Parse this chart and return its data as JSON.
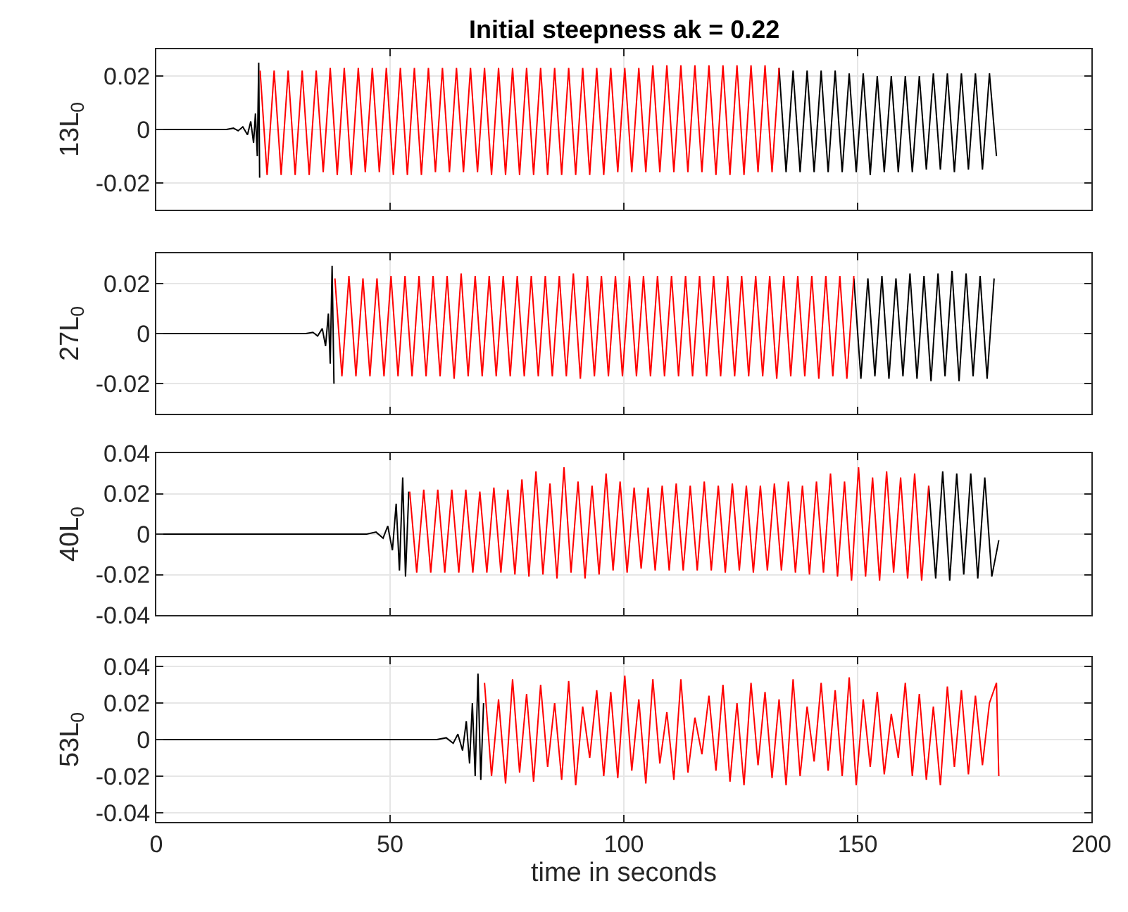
{
  "chart_data": [
    {
      "type": "line",
      "title": "Initial steepness ak = 0.22",
      "ylabel": "13L$_{0}$",
      "xlim": [
        0,
        200
      ],
      "xticks": [
        0,
        50,
        100,
        150,
        200
      ],
      "ylim": [
        -0.03,
        0.03
      ],
      "yticks": [
        -0.02,
        0,
        0.02
      ],
      "grid": true,
      "tick_labels": "y",
      "marker": "none",
      "line_style": "solid",
      "series": [
        {
          "color": "#000000",
          "x": [
            0,
            15,
            16.5,
            17.5,
            18.5,
            19.5,
            20.2,
            20.8,
            21.2,
            21.6,
            21.9,
            22.1,
            77,
            133.2,
            134.7,
            136.2,
            137.7,
            139.2,
            140.7,
            142.2,
            143.7,
            145.2,
            146.7,
            148.2,
            149.7,
            151.2,
            152.7,
            154.2,
            155.7,
            157.2,
            158.7,
            160.2,
            161.7,
            163.2,
            164.7,
            166.2,
            167.7,
            169.2,
            170.7,
            172.2,
            173.7,
            175.2,
            176.7,
            178.2,
            179.7
          ],
          "values": [
            0,
            0,
            0.0005,
            -0.0005,
            0.001,
            -0.002,
            0.003,
            -0.005,
            0.006,
            -0.01,
            0.025,
            -0.018,
            null,
            0.023,
            -0.016,
            0.022,
            -0.016,
            0.022,
            -0.016,
            0.022,
            -0.016,
            0.022,
            -0.016,
            0.021,
            -0.016,
            0.021,
            -0.017,
            0.02,
            -0.016,
            0.02,
            -0.016,
            0.02,
            -0.016,
            0.02,
            -0.015,
            0.021,
            -0.015,
            0.021,
            -0.016,
            0.021,
            -0.015,
            0.021,
            -0.015,
            0.021,
            -0.01
          ]
        },
        {
          "color": "#ff0000",
          "x": [
            22.2,
            23.7,
            25.2,
            26.7,
            28.2,
            29.7,
            31.2,
            32.7,
            34.2,
            35.7,
            37.2,
            38.7,
            40.2,
            41.7,
            43.2,
            44.7,
            46.2,
            47.7,
            49.2,
            50.7,
            52.2,
            53.7,
            55.2,
            56.7,
            58.2,
            59.7,
            61.2,
            62.7,
            64.2,
            65.7,
            67.2,
            68.7,
            70.2,
            71.7,
            73.2,
            74.7,
            76.2,
            77.7,
            79.2,
            80.7,
            82.2,
            83.7,
            85.2,
            86.7,
            88.2,
            89.7,
            91.2,
            92.7,
            94.2,
            95.7,
            97.2,
            98.7,
            100.2,
            101.7,
            103.2,
            104.7,
            106.2,
            107.7,
            109.2,
            110.7,
            112.2,
            113.7,
            115.2,
            116.7,
            118.2,
            119.7,
            121.2,
            122.7,
            124.2,
            125.7,
            127.2,
            128.7,
            130.2,
            131.7,
            133.2
          ],
          "values": [
            0.022,
            -0.017,
            0.022,
            -0.017,
            0.022,
            -0.017,
            0.022,
            -0.017,
            0.022,
            -0.016,
            0.023,
            -0.017,
            0.023,
            -0.017,
            0.023,
            -0.016,
            0.023,
            -0.016,
            0.023,
            -0.017,
            0.023,
            -0.017,
            0.023,
            -0.017,
            0.023,
            -0.016,
            0.023,
            -0.016,
            0.023,
            -0.016,
            0.023,
            -0.016,
            0.023,
            -0.017,
            0.023,
            -0.017,
            0.023,
            -0.017,
            0.023,
            -0.017,
            0.023,
            -0.017,
            0.023,
            -0.017,
            0.023,
            -0.017,
            0.023,
            -0.017,
            0.023,
            -0.017,
            0.023,
            -0.016,
            0.023,
            -0.016,
            0.023,
            -0.016,
            0.024,
            -0.016,
            0.024,
            -0.016,
            0.024,
            -0.016,
            0.024,
            -0.016,
            0.024,
            -0.017,
            0.024,
            -0.017,
            0.024,
            -0.017,
            0.024,
            -0.016,
            0.024,
            -0.016,
            0.023
          ]
        }
      ]
    },
    {
      "type": "line",
      "ylabel": "27L$_{0}$",
      "xlim": [
        0,
        200
      ],
      "xticks": [
        0,
        50,
        100,
        150,
        200
      ],
      "ylim": [
        -0.032,
        0.032
      ],
      "yticks": [
        -0.02,
        0,
        0.02
      ],
      "grid": true,
      "tick_labels": "y",
      "marker": "none",
      "line_style": "solid",
      "series": [
        {
          "color": "#000000",
          "x": [
            0,
            32,
            33.5,
            34.5,
            35.5,
            36.2,
            36.8,
            37.2,
            37.6,
            38.0,
            90,
            149.2,
            150.7,
            152.2,
            153.7,
            155.2,
            156.7,
            158.2,
            159.7,
            161.2,
            162.7,
            164.2,
            165.7,
            167.2,
            168.7,
            170.2,
            171.7,
            173.2,
            174.7,
            176.2,
            177.7,
            179.2
          ],
          "values": [
            0,
            0,
            0.0005,
            -0.001,
            0.002,
            -0.005,
            0.008,
            -0.012,
            0.027,
            -0.02,
            null,
            0.022,
            -0.018,
            0.022,
            -0.017,
            0.023,
            -0.018,
            0.022,
            -0.017,
            0.024,
            -0.018,
            0.023,
            -0.019,
            0.024,
            -0.017,
            0.025,
            -0.019,
            0.024,
            -0.017,
            0.023,
            -0.018,
            0.022
          ]
        },
        {
          "color": "#ff0000",
          "x": [
            38.2,
            39.7,
            41.2,
            42.7,
            44.2,
            45.7,
            47.2,
            48.7,
            50.2,
            51.7,
            53.2,
            54.7,
            56.2,
            57.7,
            59.2,
            60.7,
            62.2,
            63.7,
            65.2,
            66.7,
            68.2,
            69.7,
            71.2,
            72.7,
            74.2,
            75.7,
            77.2,
            78.7,
            80.2,
            81.7,
            83.2,
            84.7,
            86.2,
            87.7,
            89.2,
            90.7,
            92.2,
            93.7,
            95.2,
            96.7,
            98.2,
            99.7,
            101.2,
            102.7,
            104.2,
            105.7,
            107.2,
            108.7,
            110.2,
            111.7,
            113.2,
            114.7,
            116.2,
            117.7,
            119.2,
            120.7,
            122.2,
            123.7,
            125.2,
            126.7,
            128.2,
            129.7,
            131.2,
            132.7,
            134.2,
            135.7,
            137.2,
            138.7,
            140.2,
            141.7,
            143.2,
            144.7,
            146.2,
            147.7,
            149.2
          ],
          "values": [
            0.022,
            -0.017,
            0.023,
            -0.017,
            0.022,
            -0.017,
            0.022,
            -0.017,
            0.023,
            -0.017,
            0.023,
            -0.017,
            0.023,
            -0.017,
            0.023,
            -0.017,
            0.023,
            -0.018,
            0.024,
            -0.017,
            0.023,
            -0.017,
            0.023,
            -0.017,
            0.023,
            -0.017,
            0.023,
            -0.017,
            0.023,
            -0.017,
            0.023,
            -0.017,
            0.023,
            -0.017,
            0.024,
            -0.018,
            0.023,
            -0.017,
            0.023,
            -0.017,
            0.023,
            -0.017,
            0.023,
            -0.017,
            0.023,
            -0.017,
            0.023,
            -0.017,
            0.023,
            -0.017,
            0.023,
            -0.017,
            0.023,
            -0.017,
            0.023,
            -0.017,
            0.023,
            -0.017,
            0.023,
            -0.017,
            0.023,
            -0.017,
            0.023,
            -0.018,
            0.023,
            -0.017,
            0.023,
            -0.017,
            0.023,
            -0.018,
            0.023,
            -0.017,
            0.023,
            -0.018,
            0.023
          ]
        }
      ]
    },
    {
      "type": "line",
      "ylabel": "40L$_{0}$",
      "xlim": [
        0,
        200
      ],
      "xticks": [
        0,
        50,
        100,
        150,
        200
      ],
      "ylim": [
        -0.04,
        0.04
      ],
      "yticks": [
        -0.04,
        -0.02,
        0,
        0.02,
        0.04
      ],
      "grid": true,
      "tick_labels": "y",
      "marker": "none",
      "line_style": "solid",
      "series": [
        {
          "color": "#000000",
          "x": [
            0,
            45,
            47,
            48.5,
            49.5,
            50.5,
            51.3,
            52,
            52.7,
            53.3,
            54,
            110,
            165.2,
            166.7,
            168.2,
            169.7,
            171.2,
            172.7,
            174.2,
            175.7,
            177.2,
            178.7,
            180.2
          ],
          "values": [
            0,
            0,
            0.001,
            -0.002,
            0.004,
            -0.008,
            0.015,
            -0.018,
            0.028,
            -0.021,
            0.021,
            null,
            0.024,
            -0.022,
            0.031,
            -0.023,
            0.03,
            -0.02,
            0.03,
            -0.022,
            0.028,
            -0.021,
            -0.003
          ]
        },
        {
          "color": "#ff0000",
          "x": [
            54.2,
            55.7,
            57.2,
            58.7,
            60.2,
            61.7,
            63.2,
            64.7,
            66.2,
            67.7,
            69.2,
            70.7,
            72.2,
            73.7,
            75.2,
            76.7,
            78.2,
            79.7,
            81.2,
            82.7,
            84.2,
            85.7,
            87.2,
            88.7,
            90.2,
            91.7,
            93.2,
            94.7,
            96.2,
            97.7,
            99.2,
            100.7,
            102.2,
            103.7,
            105.2,
            106.7,
            108.2,
            109.7,
            111.2,
            112.7,
            114.2,
            115.7,
            117.2,
            118.7,
            120.2,
            121.7,
            123.2,
            124.7,
            126.2,
            127.7,
            129.2,
            130.7,
            132.2,
            133.7,
            135.2,
            136.7,
            138.2,
            139.7,
            141.2,
            142.7,
            144.2,
            145.7,
            147.2,
            148.7,
            150.2,
            151.7,
            153.2,
            154.7,
            156.2,
            157.7,
            159.2,
            160.7,
            162.2,
            163.7,
            165.2
          ],
          "values": [
            0.021,
            -0.019,
            0.022,
            -0.019,
            0.022,
            -0.019,
            0.022,
            -0.019,
            0.022,
            -0.019,
            0.021,
            -0.019,
            0.023,
            -0.019,
            0.022,
            -0.02,
            0.027,
            -0.021,
            0.031,
            -0.02,
            0.025,
            -0.022,
            0.033,
            -0.019,
            0.026,
            -0.022,
            0.024,
            -0.02,
            0.03,
            -0.018,
            0.026,
            -0.019,
            0.023,
            -0.017,
            0.023,
            -0.018,
            0.024,
            -0.018,
            0.025,
            -0.018,
            0.024,
            -0.018,
            0.026,
            -0.018,
            0.024,
            -0.019,
            0.025,
            -0.018,
            0.024,
            -0.019,
            0.024,
            -0.018,
            0.025,
            -0.018,
            0.026,
            -0.019,
            0.024,
            -0.02,
            0.026,
            -0.019,
            0.03,
            -0.021,
            0.026,
            -0.023,
            0.033,
            -0.021,
            0.028,
            -0.023,
            0.031,
            -0.019,
            0.028,
            -0.022,
            0.03,
            -0.023,
            0.024
          ]
        }
      ]
    },
    {
      "type": "line",
      "ylabel": "53L$_{0}$",
      "xlabel": "time in seconds",
      "xlim": [
        0,
        200
      ],
      "xticks": [
        0,
        50,
        100,
        150,
        200
      ],
      "ylim": [
        -0.045,
        0.045
      ],
      "yticks": [
        -0.04,
        -0.02,
        0,
        0.02,
        0.04
      ],
      "grid": true,
      "marker": "none",
      "line_style": "solid",
      "series": [
        {
          "color": "#000000",
          "x": [
            0,
            60,
            62,
            63.5,
            64.5,
            65.5,
            66.3,
            67,
            67.6,
            68.2,
            68.8,
            69.4,
            70
          ],
          "values": [
            0,
            0,
            0.001,
            -0.002,
            0.003,
            -0.006,
            0.01,
            -0.013,
            0.02,
            -0.02,
            0.036,
            -0.022,
            0.02
          ]
        },
        {
          "color": "#ff0000",
          "x": [
            70.2,
            71.7,
            73.2,
            74.7,
            76.2,
            77.7,
            79.2,
            80.7,
            82.2,
            83.7,
            85.2,
            86.7,
            88.2,
            89.7,
            91.2,
            92.7,
            94.2,
            95.7,
            97.2,
            98.7,
            100.2,
            101.7,
            103.2,
            104.7,
            106.2,
            107.7,
            109.2,
            110.7,
            112.2,
            113.7,
            115.2,
            116.7,
            118.2,
            119.7,
            121.2,
            122.7,
            124.2,
            125.7,
            127.2,
            128.7,
            130.2,
            131.7,
            133.2,
            134.7,
            136.2,
            137.7,
            139.2,
            140.7,
            142.2,
            143.7,
            145.2,
            146.7,
            148.2,
            149.7,
            151.2,
            152.7,
            154.2,
            155.7,
            157.2,
            158.7,
            160.2,
            161.7,
            163.2,
            164.7,
            166.2,
            167.7,
            169.2,
            170.7,
            172.2,
            173.7,
            175.2,
            176.7,
            178.2,
            179.7,
            180.2
          ],
          "values": [
            0.031,
            -0.02,
            0.022,
            -0.024,
            0.033,
            -0.018,
            0.025,
            -0.023,
            0.03,
            -0.015,
            0.02,
            -0.022,
            0.032,
            -0.025,
            0.018,
            -0.01,
            0.027,
            -0.02,
            0.026,
            -0.021,
            0.035,
            -0.017,
            0.022,
            -0.024,
            0.033,
            -0.013,
            0.015,
            -0.022,
            0.033,
            -0.018,
            0.012,
            -0.008,
            0.024,
            -0.017,
            0.03,
            -0.023,
            0.02,
            -0.025,
            0.031,
            -0.014,
            0.026,
            -0.021,
            0.022,
            -0.025,
            0.033,
            -0.02,
            0.018,
            -0.012,
            0.031,
            -0.017,
            0.027,
            -0.02,
            0.034,
            -0.025,
            0.022,
            -0.015,
            0.026,
            -0.019,
            0.014,
            -0.01,
            0.031,
            -0.02,
            0.025,
            -0.022,
            0.018,
            -0.025,
            0.029,
            -0.015,
            0.027,
            -0.019,
            0.024,
            -0.014,
            0.02,
            0.031,
            -0.02
          ]
        }
      ]
    }
  ]
}
